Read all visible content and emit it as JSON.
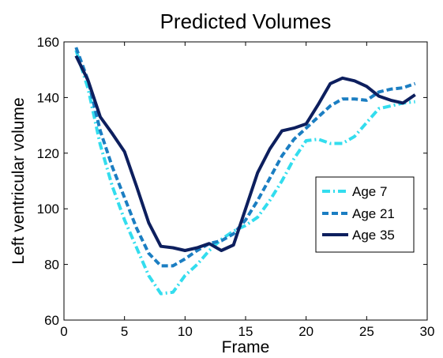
{
  "chart_data": {
    "type": "line",
    "title": "Predicted Volumes",
    "xlabel": "Frame",
    "ylabel": "Left ventricular volume",
    "xlim": [
      0,
      30
    ],
    "ylim": [
      60,
      160
    ],
    "xticks": [
      0,
      5,
      10,
      15,
      20,
      25,
      30
    ],
    "yticks": [
      60,
      80,
      100,
      120,
      140,
      160
    ],
    "grid": false,
    "legend": "center-right",
    "series": [
      {
        "name": "Age 7",
        "color": "#33ddee",
        "style": "dash-dot",
        "x": [
          1,
          2,
          3,
          4,
          5,
          6,
          7,
          8,
          9,
          10,
          11,
          12,
          13,
          14,
          15,
          16,
          17,
          18,
          19,
          20,
          21,
          22,
          23,
          24,
          25,
          26,
          27,
          28,
          29
        ],
        "values": [
          157,
          143,
          123,
          108,
          96,
          86,
          76,
          69.5,
          70,
          76,
          80,
          85,
          89,
          92,
          94,
          97,
          103,
          110,
          118,
          124.5,
          125,
          123.5,
          123.5,
          126,
          131,
          136,
          137,
          138,
          138.5
        ]
      },
      {
        "name": "Age 21",
        "color": "#1b7ec2",
        "style": "dashed",
        "x": [
          1,
          2,
          3,
          4,
          5,
          6,
          7,
          8,
          9,
          10,
          11,
          12,
          13,
          14,
          15,
          16,
          17,
          18,
          19,
          20,
          21,
          22,
          23,
          24,
          25,
          26,
          27,
          28,
          29
        ],
        "values": [
          158,
          146,
          128,
          115,
          104,
          93,
          84,
          79.5,
          79.5,
          82,
          85,
          87.5,
          88.5,
          91,
          96,
          103,
          111,
          119,
          125,
          129,
          133,
          137,
          139.5,
          139.5,
          139,
          142,
          143,
          143.5,
          145
        ]
      },
      {
        "name": "Age 35",
        "color": "#0d1f5e",
        "style": "solid",
        "x": [
          1,
          2,
          3,
          4,
          5,
          6,
          7,
          8,
          9,
          10,
          11,
          12,
          13,
          14,
          15,
          16,
          17,
          18,
          19,
          20,
          21,
          22,
          23,
          24,
          25,
          26,
          27,
          28,
          29
        ],
        "values": [
          155,
          146,
          133,
          127,
          120.5,
          108,
          95,
          86.5,
          86,
          85,
          86,
          87.5,
          85,
          87,
          100,
          113,
          121.5,
          128,
          129,
          130.5,
          137.5,
          145,
          147,
          146,
          144,
          140.5,
          139,
          138,
          141
        ]
      }
    ]
  }
}
